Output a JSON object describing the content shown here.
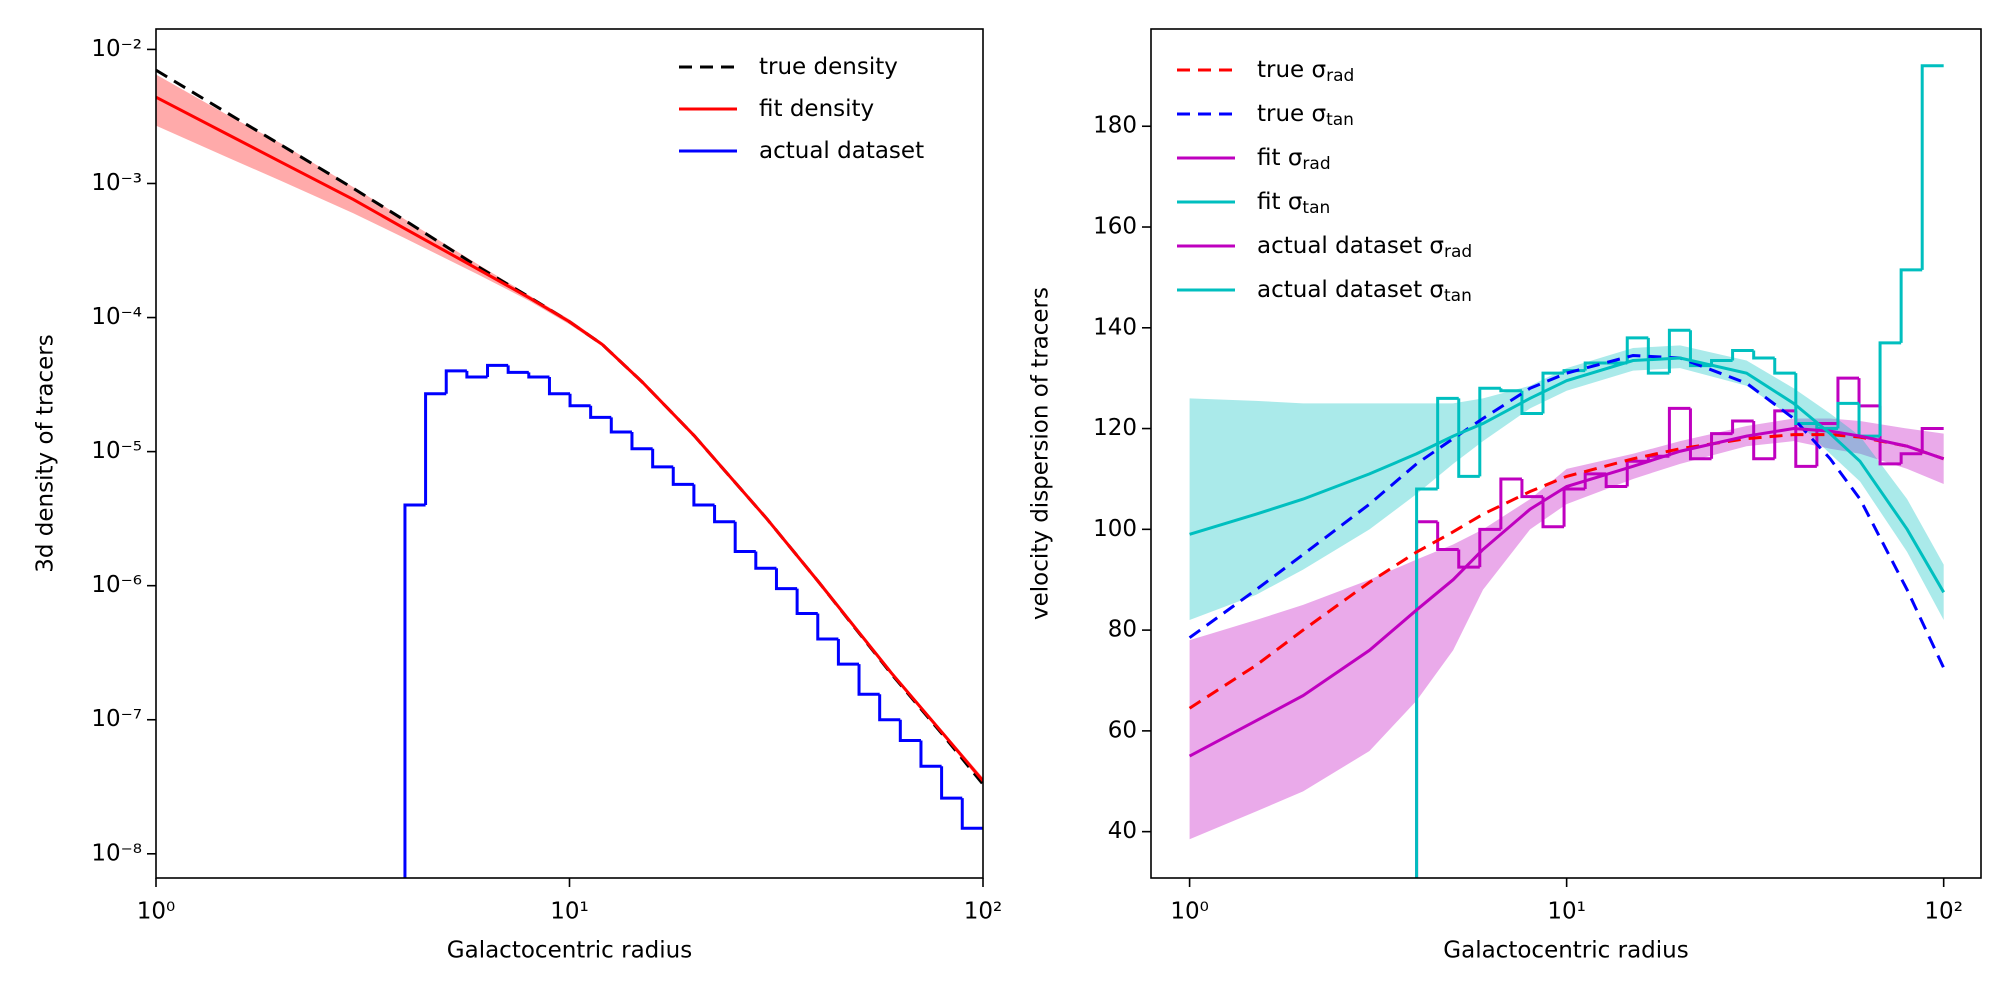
{
  "chart_data": [
    {
      "type": "line",
      "xlabel": "Galactocentric radius",
      "ylabel": "3d density of tracers",
      "xscale": "log",
      "yscale": "log",
      "xlim": [
        1,
        100
      ],
      "ylim": [
        6.6e-09,
        0.0142
      ],
      "xticks": [
        {
          "value": 1,
          "label": "10⁰"
        },
        {
          "value": 10,
          "label": "10¹"
        },
        {
          "value": 100,
          "label": "10²"
        }
      ],
      "yticks": [
        {
          "value": 1e-08,
          "label": "10⁻⁸"
        },
        {
          "value": 1e-07,
          "label": "10⁻⁷"
        },
        {
          "value": 1e-06,
          "label": "10⁻⁶"
        },
        {
          "value": 1e-05,
          "label": "10⁻⁵"
        },
        {
          "value": 0.0001,
          "label": "10⁻⁴"
        },
        {
          "value": 0.001,
          "label": "10⁻³"
        },
        {
          "value": 0.01,
          "label": "10⁻²"
        }
      ],
      "legend": "upper right",
      "series": [
        {
          "name": "true density",
          "color": "#000000",
          "dash": true,
          "x": [
            1,
            1.5,
            2,
            3,
            4,
            6,
            8,
            10,
            12,
            15,
            20,
            30,
            40,
            60,
            80,
            100
          ],
          "values": [
            0.007,
            0.0033,
            0.00195,
            0.00092,
            0.00053,
            0.00024,
            0.000142,
            9.3e-05,
            6.3e-05,
            3.3e-05,
            1.32e-05,
            3.16e-06,
            1.07e-06,
            2.2e-07,
            7.7e-08,
            3.3e-08
          ]
        },
        {
          "name": "fit density",
          "color": "#ff0000",
          "x": [
            1,
            1.5,
            2,
            3,
            4,
            6,
            8,
            10,
            12,
            15,
            20,
            30,
            40,
            60,
            80,
            100
          ],
          "values": [
            0.0044,
            0.0023,
            0.00145,
            0.00076,
            0.00046,
            0.00023,
            0.00014,
            9.3e-05,
            6.3e-05,
            3.3e-05,
            1.32e-05,
            3.16e-06,
            1.07e-06,
            2.24e-07,
            7.9e-08,
            3.5e-08
          ],
          "lower": [
            0.0027,
            0.00155,
            0.00105,
            0.0006,
            0.00039,
            0.00021,
            0.000133,
            8.9e-05,
            6.1e-05,
            3.2e-05,
            1.28e-05,
            3.06e-06,
            1.03e-06,
            2.15e-07,
            7.6e-08,
            3.3e-08
          ],
          "upper": [
            0.0065,
            0.0032,
            0.002,
            0.00094,
            0.00054,
            0.00025,
            0.000146,
            9.7e-05,
            6.5e-05,
            3.4e-05,
            1.36e-05,
            3.26e-06,
            1.11e-06,
            2.32e-07,
            8.2e-08,
            3.7e-08
          ]
        },
        {
          "name": "actual dataset",
          "color": "#0000ff",
          "bins": [
            4.0,
            4.487,
            5.034,
            5.647,
            6.335,
            7.107,
            7.972,
            8.944,
            10.03,
            11.25,
            12.62,
            14.16,
            15.89,
            17.82,
            19.99,
            22.43,
            25.16,
            28.22,
            31.66,
            35.52,
            39.85,
            44.7,
            50.14,
            56.25,
            63.1,
            70.79,
            79.41,
            89.09,
            100
          ],
          "values": [
            4e-06,
            2.7e-05,
            4e-05,
            3.6e-05,
            4.4e-05,
            3.9e-05,
            3.6e-05,
            2.7e-05,
            2.2e-05,
            1.8e-05,
            1.4e-05,
            1.05e-05,
            7.7e-06,
            5.7e-06,
            4e-06,
            3e-06,
            1.8e-06,
            1.35e-06,
            9.5e-07,
            6.2e-07,
            4e-07,
            2.6e-07,
            1.55e-07,
            1e-07,
            7e-08,
            4.5e-08,
            2.6e-08,
            1.55e-08
          ]
        }
      ]
    },
    {
      "type": "line",
      "xlabel": "Galactocentric radius",
      "ylabel": "velocity dispersion of tracers",
      "xscale": "log",
      "yscale": "linear",
      "xlim": [
        0.79,
        125.6
      ],
      "ylim": [
        30.8,
        199.3
      ],
      "xticks": [
        {
          "value": 1,
          "label": "10⁰"
        },
        {
          "value": 10,
          "label": "10¹"
        },
        {
          "value": 100,
          "label": "10²"
        }
      ],
      "yticks": [
        40,
        60,
        80,
        100,
        120,
        140,
        160,
        180
      ],
      "legend": "upper left",
      "series": [
        {
          "name": "true σ",
          "name_sub": "rad",
          "color": "#ff0000",
          "dash": true,
          "x": [
            1,
            1.5,
            2,
            3,
            4,
            5,
            6,
            8,
            10,
            15,
            20,
            30,
            40,
            50,
            60,
            80,
            100
          ],
          "values": [
            64.5,
            73,
            80,
            89.5,
            95.5,
            99.5,
            103,
            107.5,
            110.5,
            114,
            116,
            118,
            118.8,
            118.8,
            118.3,
            116.5,
            114
          ]
        },
        {
          "name": "true σ",
          "name_sub": "tan",
          "color": "#0000ff",
          "dash": true,
          "x": [
            1,
            1.5,
            2,
            3,
            4,
            5,
            6,
            8,
            10,
            15,
            20,
            30,
            40,
            50,
            60,
            80,
            100
          ],
          "values": [
            78.5,
            88,
            95,
            105,
            113,
            118,
            122,
            128,
            131,
            134.5,
            134,
            129,
            122,
            114,
            106,
            88,
            72.5
          ]
        },
        {
          "name": "fit σ",
          "name_sub": "rad",
          "color": "#bf00bf",
          "x": [
            1,
            1.5,
            2,
            3,
            4,
            5,
            6,
            8,
            10,
            15,
            20,
            30,
            40,
            50,
            60,
            80,
            100
          ],
          "values": [
            55,
            62,
            67,
            76,
            84,
            90,
            96,
            104,
            108.5,
            112.5,
            115.5,
            118.5,
            120,
            119.5,
            118.5,
            116.5,
            114
          ],
          "lower": [
            38.5,
            44,
            48,
            56,
            66,
            76,
            88,
            100,
            105,
            110,
            113,
            116.5,
            117.5,
            116,
            115,
            112,
            109
          ],
          "upper": [
            78,
            82,
            85,
            90,
            94,
            97,
            100,
            106,
            112,
            115,
            117.5,
            120.5,
            122,
            122,
            121.5,
            120,
            119
          ]
        },
        {
          "name": "fit σ",
          "name_sub": "tan",
          "color": "#00bfbf",
          "x": [
            1,
            1.5,
            2,
            3,
            4,
            5,
            6,
            8,
            10,
            15,
            20,
            30,
            40,
            50,
            60,
            80,
            100
          ],
          "values": [
            99,
            103,
            106,
            111,
            115,
            118.5,
            121,
            126,
            129.5,
            133.5,
            134,
            131,
            125,
            119,
            113.5,
            100,
            87.5
          ],
          "lower": [
            82,
            87,
            92,
            100,
            107,
            113,
            117.5,
            124,
            127.5,
            131.5,
            132,
            128.5,
            122,
            115,
            109.5,
            95.5,
            82
          ],
          "upper": [
            126,
            125.5,
            125,
            125,
            125,
            125,
            126,
            128.5,
            132,
            136,
            136.5,
            133.5,
            128,
            123,
            118.5,
            106,
            93
          ]
        },
        {
          "name": "actual dataset σ",
          "name_sub": "rad",
          "color": "#bf00bf",
          "bins": [
            4.0,
            4.549,
            5.174,
            5.884,
            6.692,
            7.611,
            8.656,
            9.844,
            11.2,
            12.73,
            14.48,
            16.47,
            18.73,
            21.3,
            24.23,
            27.55,
            31.34,
            35.64,
            40.53,
            46.1,
            52.43,
            59.63,
            67.81,
            77.12,
            87.71,
            100
          ],
          "values": [
            101.5,
            96,
            92.5,
            100,
            110,
            106.5,
            100.5,
            108,
            111,
            108.5,
            113.5,
            114.5,
            124,
            114,
            119,
            121.5,
            114,
            123.5,
            112.5,
            121,
            130,
            124.5,
            113,
            115,
            120
          ]
        },
        {
          "name": "actual dataset σ",
          "name_sub": "tan",
          "color": "#00bfbf",
          "bins": [
            4.0,
            4.549,
            5.174,
            5.884,
            6.692,
            7.611,
            8.656,
            9.844,
            11.2,
            12.73,
            14.48,
            16.47,
            18.73,
            21.3,
            24.23,
            27.55,
            31.34,
            35.64,
            40.53,
            46.1,
            52.43,
            59.63,
            67.81,
            77.12,
            87.71,
            100
          ],
          "values": [
            108,
            126,
            110.5,
            128,
            127.5,
            123,
            131,
            131.5,
            133,
            133,
            138,
            131,
            139.5,
            132.5,
            133.5,
            135.5,
            134,
            131,
            121,
            120,
            125,
            118.5,
            137,
            151.5,
            192
          ]
        }
      ]
    }
  ]
}
